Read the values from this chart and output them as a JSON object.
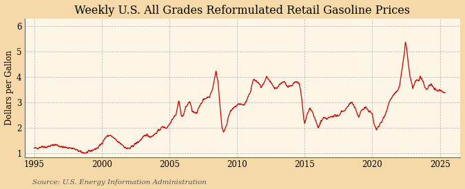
{
  "title": "Weekly U.S. All Grades Reformulated Retail Gasoline Prices",
  "ylabel": "Dollars per Gallon",
  "source": "Source: U.S. Energy Information Administration",
  "xlim": [
    1994.3,
    2026.5
  ],
  "ylim": [
    0.85,
    6.3
  ],
  "yticks": [
    1,
    2,
    3,
    4,
    5,
    6
  ],
  "xticks": [
    1995,
    2000,
    2005,
    2010,
    2015,
    2020,
    2025
  ],
  "line_color": "#cc0000",
  "bg_outer": "#f5d9a8",
  "bg_inner": "#fdf5e6",
  "grid_color": "#aaaaaa",
  "title_fontsize": 11.5,
  "label_fontsize": 8.5,
  "tick_fontsize": 8.5,
  "source_fontsize": 7.5,
  "anchors": [
    [
      1995.0,
      1.2
    ],
    [
      1995.3,
      1.22
    ],
    [
      1995.6,
      1.28
    ],
    [
      1995.9,
      1.25
    ],
    [
      1996.2,
      1.3
    ],
    [
      1996.6,
      1.35
    ],
    [
      1996.9,
      1.28
    ],
    [
      1997.2,
      1.24
    ],
    [
      1997.6,
      1.22
    ],
    [
      1997.9,
      1.2
    ],
    [
      1998.2,
      1.12
    ],
    [
      1998.5,
      1.05
    ],
    [
      1998.8,
      1.02
    ],
    [
      1999.1,
      1.08
    ],
    [
      1999.4,
      1.15
    ],
    [
      1999.7,
      1.22
    ],
    [
      2000.0,
      1.4
    ],
    [
      2000.3,
      1.65
    ],
    [
      2000.6,
      1.72
    ],
    [
      2000.9,
      1.6
    ],
    [
      2001.2,
      1.45
    ],
    [
      2001.5,
      1.35
    ],
    [
      2001.8,
      1.2
    ],
    [
      2002.1,
      1.2
    ],
    [
      2002.4,
      1.35
    ],
    [
      2002.7,
      1.45
    ],
    [
      2003.0,
      1.6
    ],
    [
      2003.3,
      1.75
    ],
    [
      2003.6,
      1.65
    ],
    [
      2003.9,
      1.75
    ],
    [
      2004.2,
      1.9
    ],
    [
      2004.5,
      2.05
    ],
    [
      2004.8,
      2.0
    ],
    [
      2005.0,
      2.15
    ],
    [
      2005.2,
      2.35
    ],
    [
      2005.5,
      2.55
    ],
    [
      2005.7,
      3.1
    ],
    [
      2005.85,
      2.55
    ],
    [
      2006.0,
      2.45
    ],
    [
      2006.2,
      2.8
    ],
    [
      2006.5,
      3.05
    ],
    [
      2006.7,
      2.65
    ],
    [
      2007.0,
      2.55
    ],
    [
      2007.2,
      2.85
    ],
    [
      2007.5,
      3.1
    ],
    [
      2007.8,
      3.2
    ],
    [
      2008.0,
      3.25
    ],
    [
      2008.2,
      3.55
    ],
    [
      2008.45,
      4.25
    ],
    [
      2008.6,
      3.8
    ],
    [
      2008.75,
      2.8
    ],
    [
      2008.9,
      2.0
    ],
    [
      2009.0,
      1.85
    ],
    [
      2009.2,
      2.05
    ],
    [
      2009.4,
      2.55
    ],
    [
      2009.6,
      2.7
    ],
    [
      2009.8,
      2.8
    ],
    [
      2010.0,
      2.9
    ],
    [
      2010.2,
      2.95
    ],
    [
      2010.5,
      2.9
    ],
    [
      2010.7,
      3.05
    ],
    [
      2011.0,
      3.45
    ],
    [
      2011.2,
      3.9
    ],
    [
      2011.4,
      3.85
    ],
    [
      2011.6,
      3.75
    ],
    [
      2011.8,
      3.6
    ],
    [
      2012.0,
      3.75
    ],
    [
      2012.2,
      4.0
    ],
    [
      2012.4,
      3.85
    ],
    [
      2012.6,
      3.7
    ],
    [
      2012.8,
      3.55
    ],
    [
      2013.0,
      3.6
    ],
    [
      2013.2,
      3.75
    ],
    [
      2013.5,
      3.8
    ],
    [
      2013.7,
      3.65
    ],
    [
      2014.0,
      3.65
    ],
    [
      2014.3,
      3.8
    ],
    [
      2014.6,
      3.75
    ],
    [
      2014.8,
      3.1
    ],
    [
      2014.9,
      2.5
    ],
    [
      2015.0,
      2.15
    ],
    [
      2015.2,
      2.55
    ],
    [
      2015.4,
      2.8
    ],
    [
      2015.6,
      2.6
    ],
    [
      2015.8,
      2.3
    ],
    [
      2016.0,
      2.0
    ],
    [
      2016.2,
      2.25
    ],
    [
      2016.4,
      2.4
    ],
    [
      2016.6,
      2.35
    ],
    [
      2016.8,
      2.4
    ],
    [
      2017.0,
      2.45
    ],
    [
      2017.2,
      2.5
    ],
    [
      2017.5,
      2.45
    ],
    [
      2017.7,
      2.65
    ],
    [
      2018.0,
      2.7
    ],
    [
      2018.3,
      2.95
    ],
    [
      2018.5,
      3.0
    ],
    [
      2018.7,
      2.8
    ],
    [
      2018.9,
      2.55
    ],
    [
      2019.0,
      2.45
    ],
    [
      2019.2,
      2.7
    ],
    [
      2019.5,
      2.8
    ],
    [
      2019.7,
      2.7
    ],
    [
      2020.0,
      2.55
    ],
    [
      2020.15,
      2.1
    ],
    [
      2020.3,
      1.95
    ],
    [
      2020.5,
      2.1
    ],
    [
      2020.7,
      2.25
    ],
    [
      2021.0,
      2.6
    ],
    [
      2021.3,
      3.1
    ],
    [
      2021.6,
      3.3
    ],
    [
      2021.9,
      3.5
    ],
    [
      2022.0,
      3.6
    ],
    [
      2022.2,
      4.3
    ],
    [
      2022.35,
      4.85
    ],
    [
      2022.45,
      5.4
    ],
    [
      2022.55,
      5.1
    ],
    [
      2022.65,
      4.55
    ],
    [
      2022.8,
      4.0
    ],
    [
      2022.9,
      3.75
    ],
    [
      2023.0,
      3.55
    ],
    [
      2023.15,
      3.8
    ],
    [
      2023.3,
      3.9
    ],
    [
      2023.45,
      3.85
    ],
    [
      2023.55,
      4.05
    ],
    [
      2023.7,
      3.85
    ],
    [
      2023.85,
      3.65
    ],
    [
      2024.0,
      3.5
    ],
    [
      2024.2,
      3.65
    ],
    [
      2024.4,
      3.7
    ],
    [
      2024.6,
      3.55
    ],
    [
      2024.8,
      3.45
    ],
    [
      2025.0,
      3.5
    ],
    [
      2025.3,
      3.4
    ]
  ]
}
